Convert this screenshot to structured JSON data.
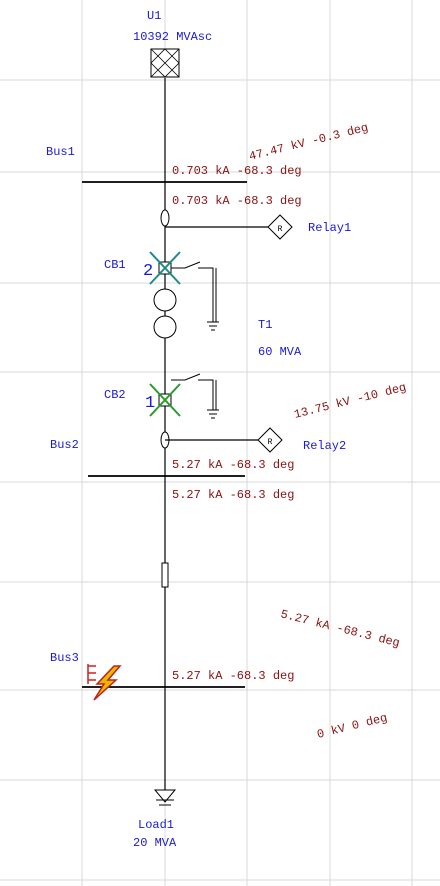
{
  "source": {
    "name": "U1",
    "rating": "10392 MVAsc"
  },
  "buses": [
    {
      "name": "Bus1",
      "voltage": "47.47 kV -0.3 deg",
      "current_in": "0.703 kA -68.3 deg",
      "current_out": "0.703 kA -68.3 deg"
    },
    {
      "name": "Bus2",
      "voltage": "13.75 kV -10 deg",
      "current_in": "5.27 kA -68.3 deg",
      "current_out": "5.27 kA -68.3 deg"
    },
    {
      "name": "Bus3",
      "voltage": "0 kV 0 deg",
      "current_in": "5.27 kA -68.3 deg",
      "fault_current": "5.27 kA -68.3 deg"
    }
  ],
  "relays": [
    {
      "name": "Relay1",
      "symbol": "R"
    },
    {
      "name": "Relay2",
      "symbol": "R"
    }
  ],
  "breakers": [
    {
      "name": "CB1",
      "number": "2"
    },
    {
      "name": "CB2",
      "number": "1"
    }
  ],
  "transformer": {
    "name": "T1",
    "rating": "60 MVA"
  },
  "load": {
    "name": "Load1",
    "rating": "20 MVA"
  }
}
